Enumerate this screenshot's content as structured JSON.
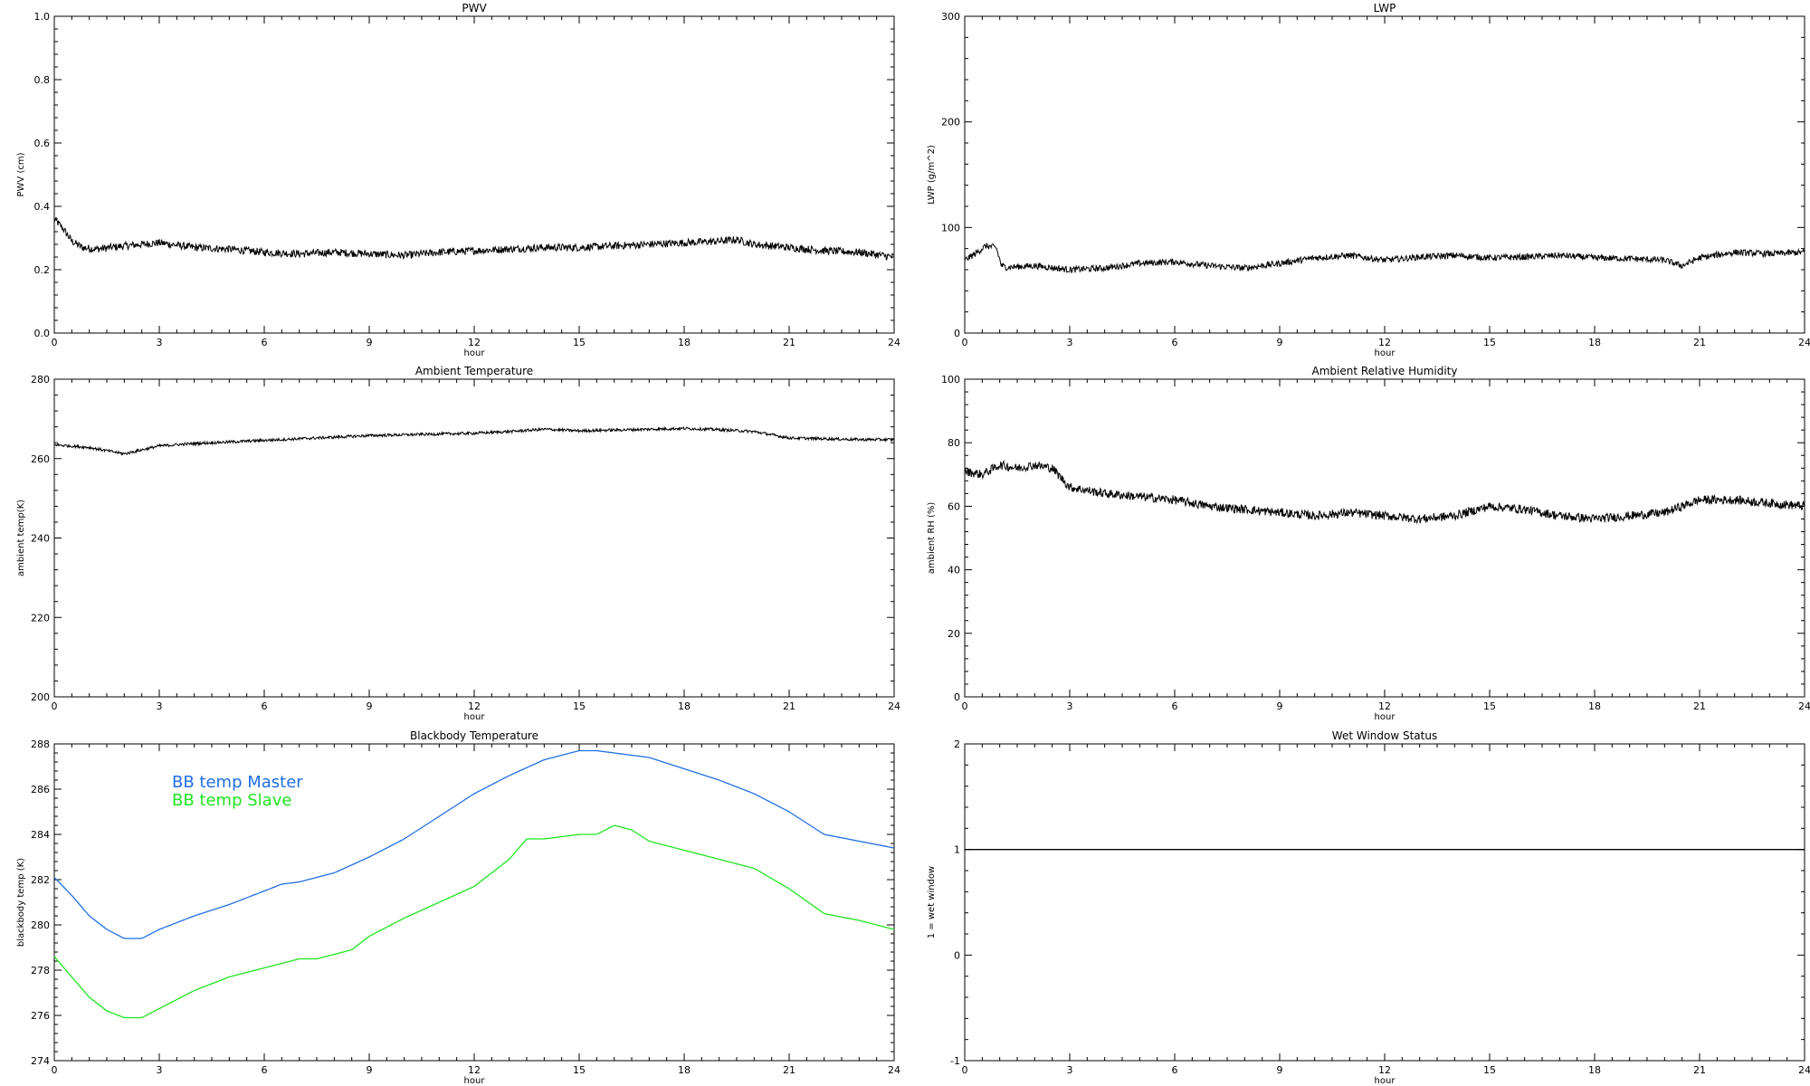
{
  "chart_data": [
    {
      "type": "line",
      "title": "PWV",
      "xlabel": "hour",
      "ylabel": "PWV (cm)",
      "xlim": [
        0,
        24
      ],
      "ylim": [
        0.0,
        1.0
      ],
      "xticks": [
        "0",
        "3",
        "6",
        "9",
        "12",
        "15",
        "18",
        "21",
        "24"
      ],
      "yticks": [
        "0.0",
        "0.2",
        "0.4",
        "0.6",
        "0.8",
        "1.0"
      ],
      "noise": 0.012,
      "series": [
        {
          "color": "#000000",
          "x": [
            0,
            0.25,
            0.5,
            0.8,
            1.2,
            2,
            3,
            4,
            5,
            6,
            7,
            8,
            9,
            10,
            11,
            12,
            13,
            14,
            15,
            16,
            17,
            18,
            19,
            19.5,
            20,
            21,
            22,
            23,
            24
          ],
          "y": [
            0.36,
            0.33,
            0.29,
            0.27,
            0.265,
            0.275,
            0.285,
            0.27,
            0.265,
            0.255,
            0.25,
            0.255,
            0.25,
            0.245,
            0.255,
            0.26,
            0.265,
            0.27,
            0.27,
            0.275,
            0.28,
            0.285,
            0.29,
            0.295,
            0.28,
            0.27,
            0.26,
            0.255,
            0.24
          ]
        }
      ]
    },
    {
      "type": "line",
      "title": "LWP",
      "xlabel": "hour",
      "ylabel": "LWP (g/m^2)",
      "xlim": [
        0,
        24
      ],
      "ylim": [
        -50,
        350
      ],
      "xticks": [
        "0",
        "3",
        "6",
        "9",
        "12",
        "15",
        "18",
        "21",
        "24"
      ],
      "yticks": [
        "0",
        "100",
        "200",
        "300"
      ],
      "noise": 4,
      "series": [
        {
          "color": "#000000",
          "x": [
            0,
            0.3,
            0.6,
            0.9,
            1.05,
            1.2,
            2,
            3,
            4,
            5,
            6,
            7,
            8,
            9,
            10,
            11,
            12,
            13,
            14,
            15,
            16,
            17,
            18,
            19,
            20,
            20.5,
            21,
            22,
            23,
            24
          ],
          "y": [
            42,
            50,
            60,
            58,
            35,
            33,
            35,
            30,
            32,
            38,
            40,
            35,
            32,
            38,
            45,
            48,
            42,
            46,
            48,
            45,
            46,
            48,
            45,
            44,
            42,
            35,
            45,
            52,
            50,
            52
          ]
        }
      ]
    },
    {
      "type": "line",
      "title": "Ambient Temperature",
      "xlabel": "hour",
      "ylabel": "ambient temp(K)",
      "xlim": [
        0,
        24
      ],
      "ylim": [
        200,
        280
      ],
      "xticks": [
        "0",
        "3",
        "6",
        "9",
        "12",
        "15",
        "18",
        "21",
        "24"
      ],
      "yticks": [
        "200",
        "220",
        "240",
        "260",
        "280"
      ],
      "noise": 0.35,
      "series": [
        {
          "color": "#000000",
          "x": [
            0,
            1,
            2,
            3,
            4,
            5,
            6,
            7,
            8,
            9,
            10,
            11,
            12,
            13,
            14,
            15,
            16,
            17,
            18,
            19,
            20,
            21,
            22,
            23,
            24
          ],
          "y": [
            263.5,
            262.8,
            261.2,
            263.2,
            263.8,
            264.2,
            264.6,
            265.0,
            265.4,
            265.8,
            266.0,
            266.2,
            266.4,
            266.8,
            267.4,
            267.0,
            267.2,
            267.4,
            267.6,
            267.3,
            266.8,
            265.2,
            265.0,
            264.8,
            264.8
          ]
        }
      ]
    },
    {
      "type": "line",
      "title": "Ambient Relative Humidity",
      "xlabel": "hour",
      "ylabel": "ambient RH (%)",
      "xlim": [
        0,
        24
      ],
      "ylim": [
        0,
        100
      ],
      "xticks": [
        "0",
        "3",
        "6",
        "9",
        "12",
        "15",
        "18",
        "21",
        "24"
      ],
      "yticks": [
        "0",
        "20",
        "40",
        "60",
        "80",
        "100"
      ],
      "noise": 1.4,
      "series": [
        {
          "color": "#000000",
          "x": [
            0,
            0.5,
            1,
            1.5,
            2,
            2.5,
            3,
            4,
            5,
            6,
            7,
            8,
            9,
            10,
            11,
            12,
            13,
            14,
            15,
            16,
            17,
            18,
            19,
            20,
            21,
            22,
            23,
            24
          ],
          "y": [
            71,
            70,
            73,
            72,
            73,
            72,
            66,
            64,
            63,
            62,
            60,
            59,
            58,
            57,
            58,
            57,
            56,
            57,
            60,
            59,
            57,
            56,
            57,
            58,
            62,
            62,
            61,
            60
          ]
        }
      ]
    },
    {
      "type": "line",
      "title": "Blackbody Temperature",
      "xlabel": "hour",
      "ylabel": "blackbody temp (K)",
      "xlim": [
        0,
        24
      ],
      "ylim": [
        274,
        288
      ],
      "xticks": [
        "0",
        "3",
        "6",
        "9",
        "12",
        "15",
        "18",
        "21",
        "24"
      ],
      "yticks": [
        "274",
        "276",
        "278",
        "280",
        "282",
        "284",
        "286",
        "288"
      ],
      "noise": 0,
      "legend": {
        "placement": "top-left"
      },
      "series": [
        {
          "name": "BB temp Master",
          "color": "#1f6fe6",
          "x": [
            0,
            0.5,
            1,
            1.5,
            2,
            2.5,
            3,
            4,
            5,
            6,
            6.5,
            7,
            8,
            9,
            10,
            11,
            12,
            13,
            14,
            15,
            15.5,
            16,
            17,
            18,
            19,
            20,
            21,
            22,
            23,
            24
          ],
          "y": [
            282.1,
            281.3,
            280.4,
            279.8,
            279.4,
            279.4,
            279.8,
            280.4,
            280.9,
            281.5,
            281.8,
            281.9,
            282.3,
            283.0,
            283.8,
            284.8,
            285.8,
            286.6,
            287.3,
            287.7,
            287.7,
            287.6,
            287.4,
            286.9,
            286.4,
            285.8,
            285.0,
            284.0,
            283.7,
            283.4
          ]
        },
        {
          "name": "BB temp Slave",
          "color": "#1ee61e",
          "x": [
            0,
            0.5,
            1,
            1.5,
            2,
            2.5,
            3,
            4,
            5,
            6,
            7,
            7.5,
            8.5,
            9,
            10,
            11,
            12,
            13,
            13.5,
            14,
            15,
            15.5,
            16,
            16.5,
            17,
            18,
            19,
            20,
            21,
            22,
            23,
            24
          ],
          "y": [
            278.6,
            277.7,
            276.8,
            276.2,
            275.9,
            275.9,
            276.3,
            277.1,
            277.7,
            278.1,
            278.5,
            278.5,
            278.9,
            279.5,
            280.3,
            281.0,
            281.7,
            282.9,
            283.8,
            283.8,
            284.0,
            284.0,
            284.4,
            284.2,
            283.7,
            283.3,
            282.9,
            282.5,
            281.6,
            280.5,
            280.2,
            279.8
          ]
        }
      ]
    },
    {
      "type": "line",
      "title": "Wet Window Status",
      "xlabel": "hour",
      "ylabel": "1 = wet window",
      "xlim": [
        0,
        24
      ],
      "ylim": [
        -1,
        2
      ],
      "xticks": [
        "0",
        "3",
        "6",
        "9",
        "12",
        "15",
        "18",
        "21",
        "24"
      ],
      "yticks": [
        "-1",
        "0",
        "1",
        "2"
      ],
      "noise": 0,
      "series": [
        {
          "color": "#000000",
          "x": [
            0,
            24
          ],
          "y": [
            1,
            1
          ]
        }
      ]
    }
  ]
}
